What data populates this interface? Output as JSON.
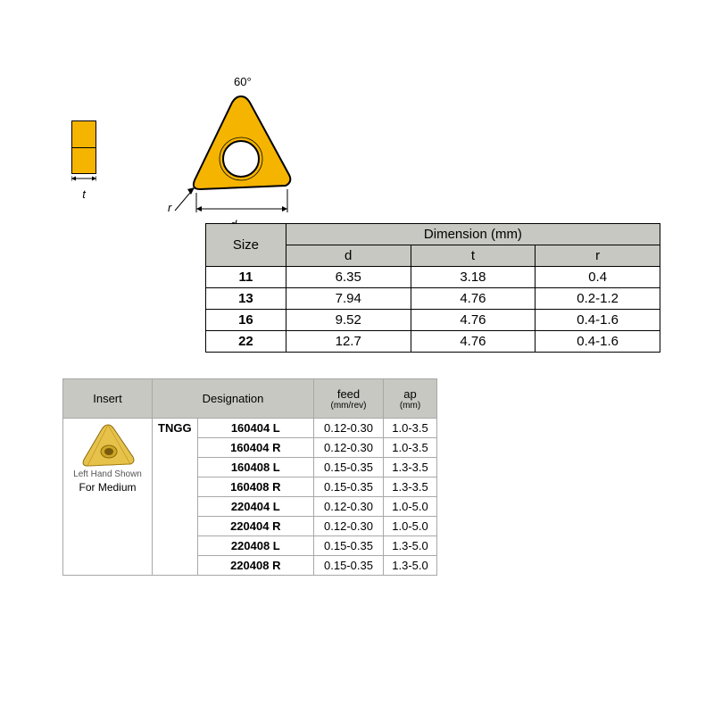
{
  "diagram": {
    "angle_label": "60°",
    "r_label": "r",
    "d_label": "d",
    "t_label": "t",
    "triangle_fill": "#f5b400",
    "triangle_stroke": "#000000",
    "hole_fill": "#ffffff"
  },
  "size_table": {
    "headers": {
      "size": "Size",
      "dimension_group": "Dimension (mm)",
      "d": "d",
      "t": "t",
      "r": "r"
    },
    "rows": [
      {
        "size": "11",
        "d": "6.35",
        "t": "3.18",
        "r": "0.4"
      },
      {
        "size": "13",
        "d": "7.94",
        "t": "4.76",
        "r": "0.2-1.2"
      },
      {
        "size": "16",
        "d": "9.52",
        "t": "4.76",
        "r": "0.4-1.6"
      },
      {
        "size": "22",
        "d": "12.7",
        "t": "4.76",
        "r": "0.4-1.6"
      }
    ]
  },
  "insert_table": {
    "headers": {
      "insert": "Insert",
      "designation": "Designation",
      "feed": "feed",
      "feed_unit": "(mm/rev)",
      "ap": "ap",
      "ap_unit": "(mm)"
    },
    "insert_cell": {
      "caption1": "Left Hand Shown",
      "caption2": "For Medium"
    },
    "prefix": "TNGG",
    "rows": [
      {
        "code": "160404 L",
        "feed": "0.12-0.30",
        "ap": "1.0-3.5"
      },
      {
        "code": "160404 R",
        "feed": "0.12-0.30",
        "ap": "1.0-3.5"
      },
      {
        "code": "160408 L",
        "feed": "0.15-0.35",
        "ap": "1.3-3.5"
      },
      {
        "code": "160408 R",
        "feed": "0.15-0.35",
        "ap": "1.3-3.5"
      },
      {
        "code": "220404 L",
        "feed": "0.12-0.30",
        "ap": "1.0-5.0"
      },
      {
        "code": "220404 R",
        "feed": "0.12-0.30",
        "ap": "1.0-5.0"
      },
      {
        "code": "220408 L",
        "feed": "0.15-0.35",
        "ap": "1.3-5.0"
      },
      {
        "code": "220408 R",
        "feed": "0.15-0.35",
        "ap": "1.3-5.0"
      }
    ]
  },
  "colors": {
    "header_bg": "#c8c8c2",
    "border_dark": "#000000",
    "border_light": "#a8a8a8",
    "gold": "#f5b400"
  }
}
